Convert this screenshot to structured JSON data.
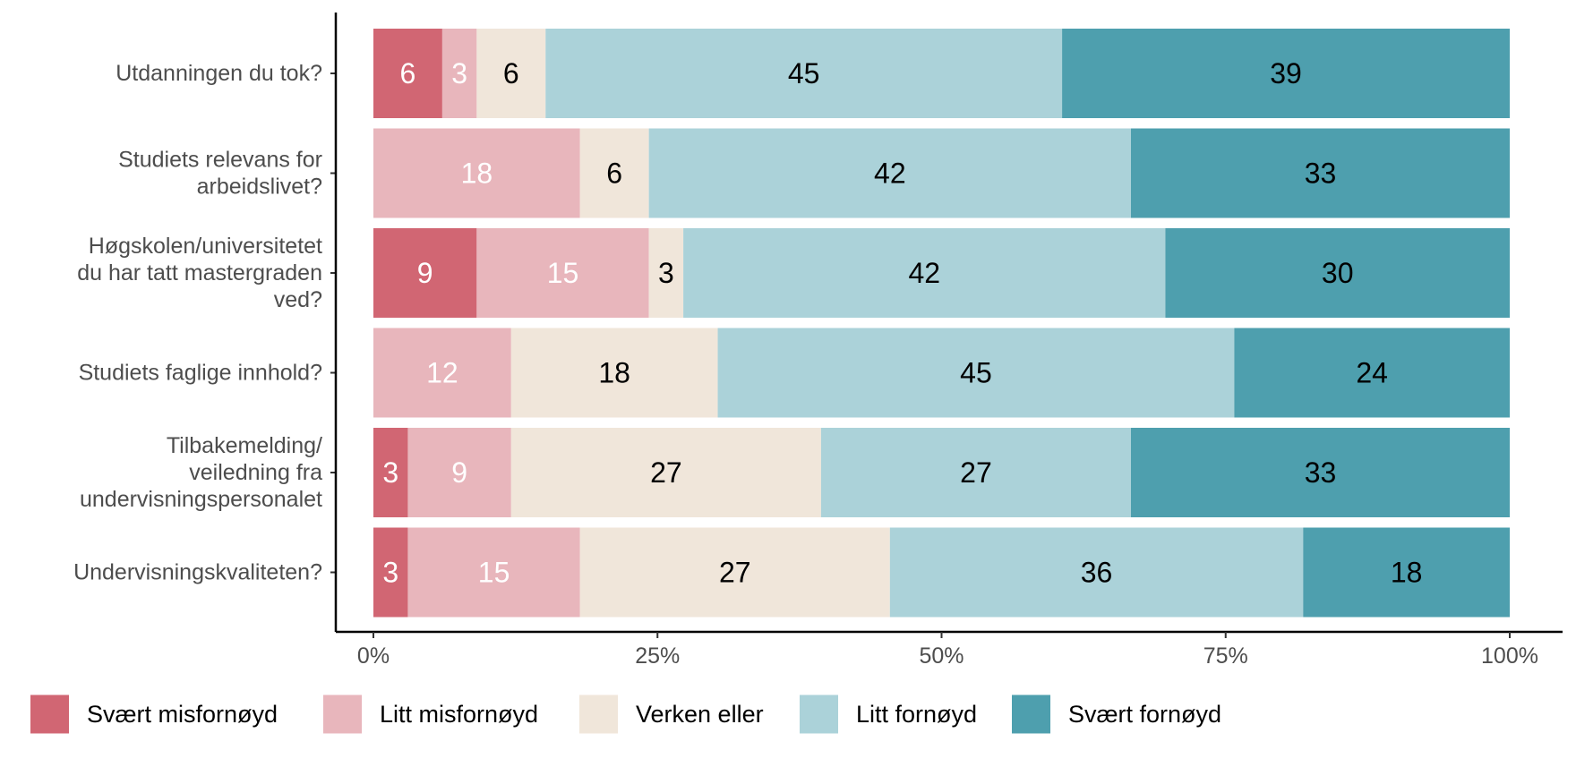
{
  "chart_data": {
    "type": "bar",
    "orientation": "horizontal",
    "stacked": true,
    "percent": true,
    "categories": [
      [
        "Utdanningen du tok?"
      ],
      [
        "Studiets relevans for",
        "arbeidslivet?"
      ],
      [
        "Høgskolen/universitetet",
        "du har tatt mastergraden",
        "ved?"
      ],
      [
        "Studiets faglige innhold?"
      ],
      [
        "Tilbakemelding/",
        "veiledning fra",
        "undervisningspersonalet"
      ],
      [
        "Undervisningskvaliteten?"
      ]
    ],
    "series": [
      {
        "name": "Svært misfornøyd",
        "color": "#d16673",
        "label_color": "#ffffff",
        "values": [
          6,
          0,
          9,
          0,
          3,
          3
        ]
      },
      {
        "name": "Litt misfornøyd",
        "color": "#e8b6bc",
        "label_color": "#ffffff",
        "values": [
          3,
          18,
          15,
          12,
          9,
          15
        ]
      },
      {
        "name": "Verken eller",
        "color": "#f0e6da",
        "label_color": "#000000",
        "values": [
          6,
          6,
          3,
          18,
          27,
          27
        ]
      },
      {
        "name": "Litt fornøyd",
        "color": "#abd2d9",
        "label_color": "#000000",
        "values": [
          45,
          42,
          42,
          45,
          27,
          36
        ]
      },
      {
        "name": "Svært fornøyd",
        "color": "#4e9fae",
        "label_color": "#000000",
        "values": [
          39,
          33,
          30,
          24,
          33,
          18
        ]
      }
    ],
    "xlim": [
      0,
      100
    ],
    "x_ticks": [
      0,
      25,
      50,
      75,
      100
    ],
    "x_tick_labels": [
      "0%",
      "25%",
      "50%",
      "75%",
      "100%"
    ],
    "grid": false,
    "legend_position": "bottom"
  }
}
